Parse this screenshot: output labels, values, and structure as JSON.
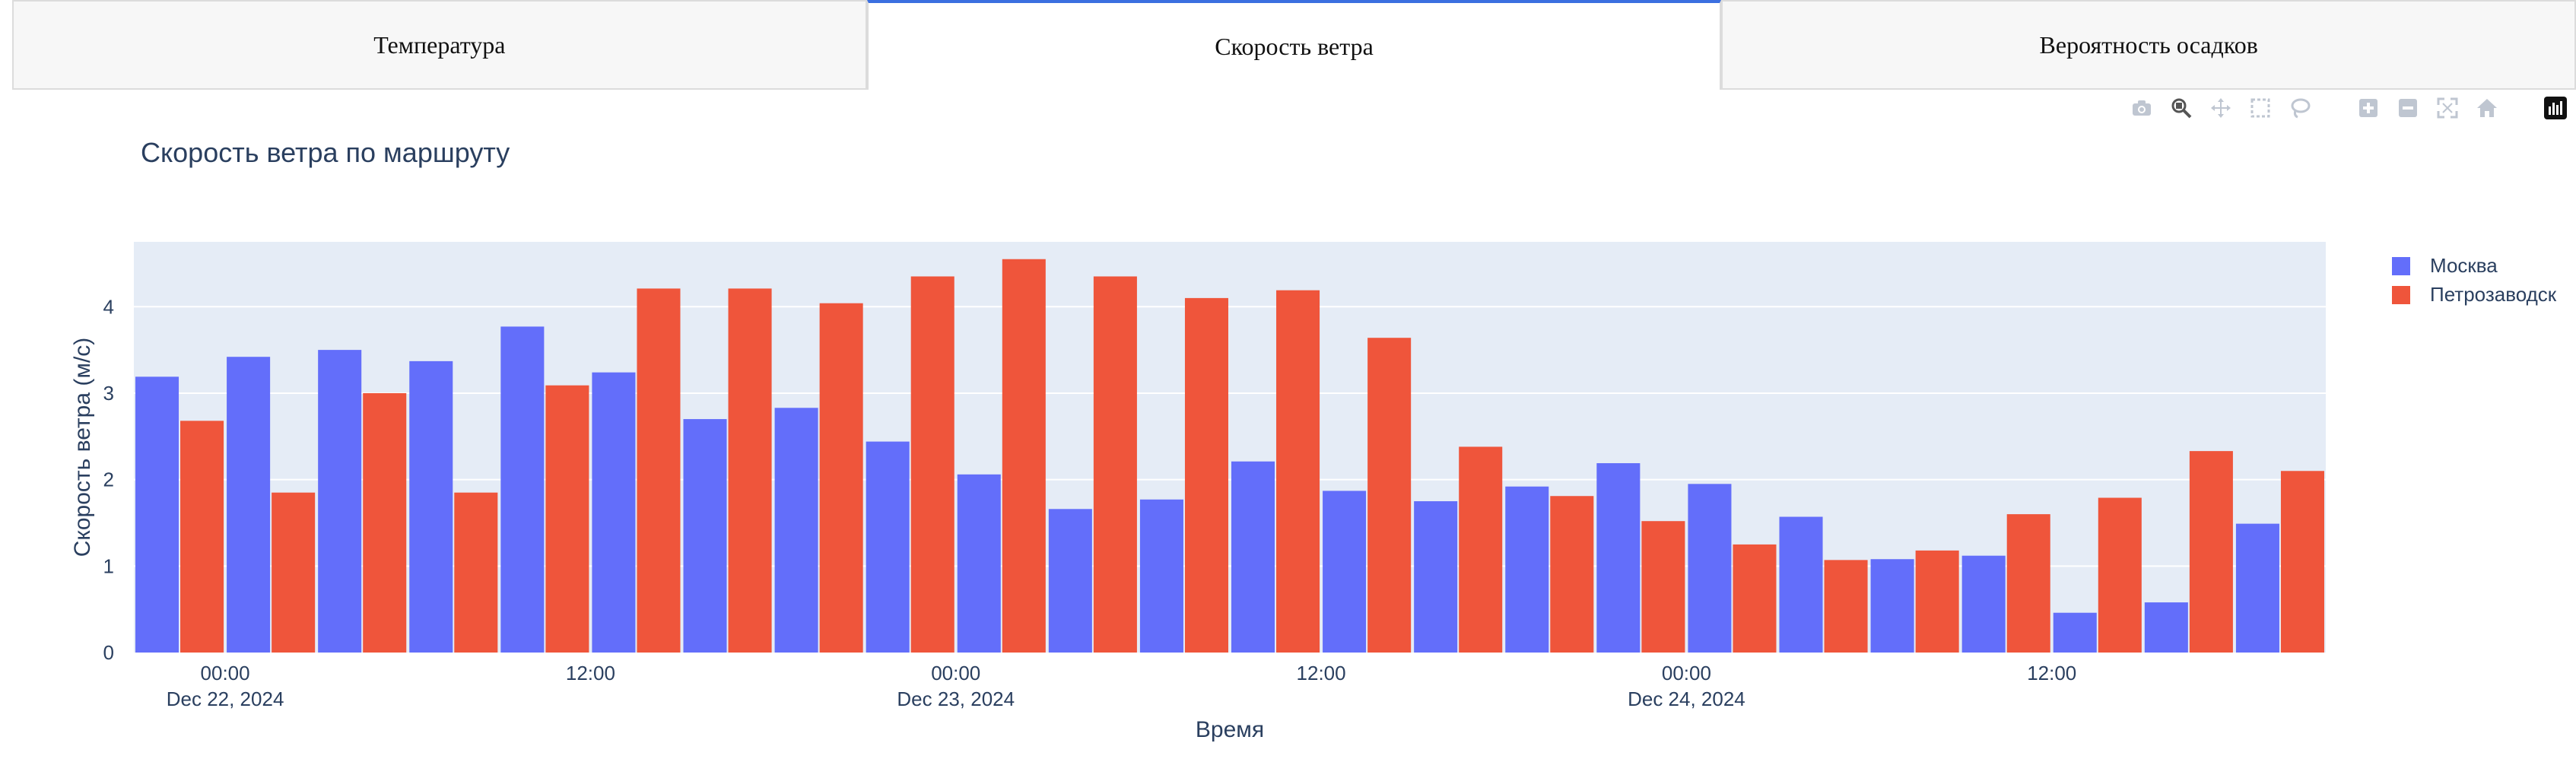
{
  "tabs": [
    {
      "label": "Температура",
      "active": false
    },
    {
      "label": "Скорость ветра",
      "active": true
    },
    {
      "label": "Вероятность осадков",
      "active": false
    }
  ],
  "modebar": [
    "camera-icon",
    "zoom-icon",
    "pan-icon",
    "box-select-icon",
    "lasso-select-icon",
    "zoom-in-icon",
    "zoom-out-icon",
    "autoscale-icon",
    "reset-axes-icon",
    "plotly-logo-icon"
  ],
  "chart_data": {
    "type": "bar",
    "title": "Скорость ветра по маршруту",
    "xlabel": "Время",
    "ylabel": "Скорость ветра (м/с)",
    "ylim": [
      0,
      4.75
    ],
    "yticks": [
      0,
      1,
      2,
      3,
      4
    ],
    "grid": true,
    "legend_position": "top-right",
    "x_tick_labels": [
      {
        "index": 1,
        "line1": "00:00",
        "line2": "Dec 22, 2024"
      },
      {
        "index": 5,
        "line1": "12:00",
        "line2": ""
      },
      {
        "index": 9,
        "line1": "00:00",
        "line2": "Dec 23, 2024"
      },
      {
        "index": 13,
        "line1": "12:00",
        "line2": ""
      },
      {
        "index": 17,
        "line1": "00:00",
        "line2": "Dec 24, 2024"
      },
      {
        "index": 21,
        "line1": "12:00",
        "line2": ""
      }
    ],
    "x": [
      "2024-12-21 18:00",
      "2024-12-21 21:00",
      "2024-12-22 00:00",
      "2024-12-22 03:00",
      "2024-12-22 06:00",
      "2024-12-22 09:00",
      "2024-12-22 12:00",
      "2024-12-22 15:00",
      "2024-12-22 18:00",
      "2024-12-22 21:00",
      "2024-12-23 00:00",
      "2024-12-23 03:00",
      "2024-12-23 06:00",
      "2024-12-23 09:00",
      "2024-12-23 12:00",
      "2024-12-23 15:00",
      "2024-12-23 18:00",
      "2024-12-23 21:00",
      "2024-12-24 00:00",
      "2024-12-24 03:00",
      "2024-12-24 06:00",
      "2024-12-24 09:00",
      "2024-12-24 12:00",
      "2024-12-24 15:00"
    ],
    "series": [
      {
        "name": "Москва",
        "color": "#636efa",
        "values": [
          3.19,
          3.42,
          3.5,
          3.37,
          3.77,
          3.24,
          2.7,
          2.83,
          2.44,
          2.06,
          1.66,
          1.77,
          2.21,
          1.87,
          1.75,
          1.92,
          2.19,
          1.95,
          1.57,
          1.08,
          1.12,
          0.46,
          0.58,
          1.49
        ]
      },
      {
        "name": "Петрозаводск",
        "color": "#ef553b",
        "values": [
          2.68,
          1.85,
          3.0,
          1.85,
          3.09,
          4.21,
          4.21,
          4.04,
          4.35,
          4.55,
          4.35,
          4.1,
          4.19,
          3.64,
          2.38,
          1.81,
          1.52,
          1.25,
          1.07,
          1.18,
          1.6,
          1.79,
          2.33,
          2.1
        ]
      }
    ]
  }
}
